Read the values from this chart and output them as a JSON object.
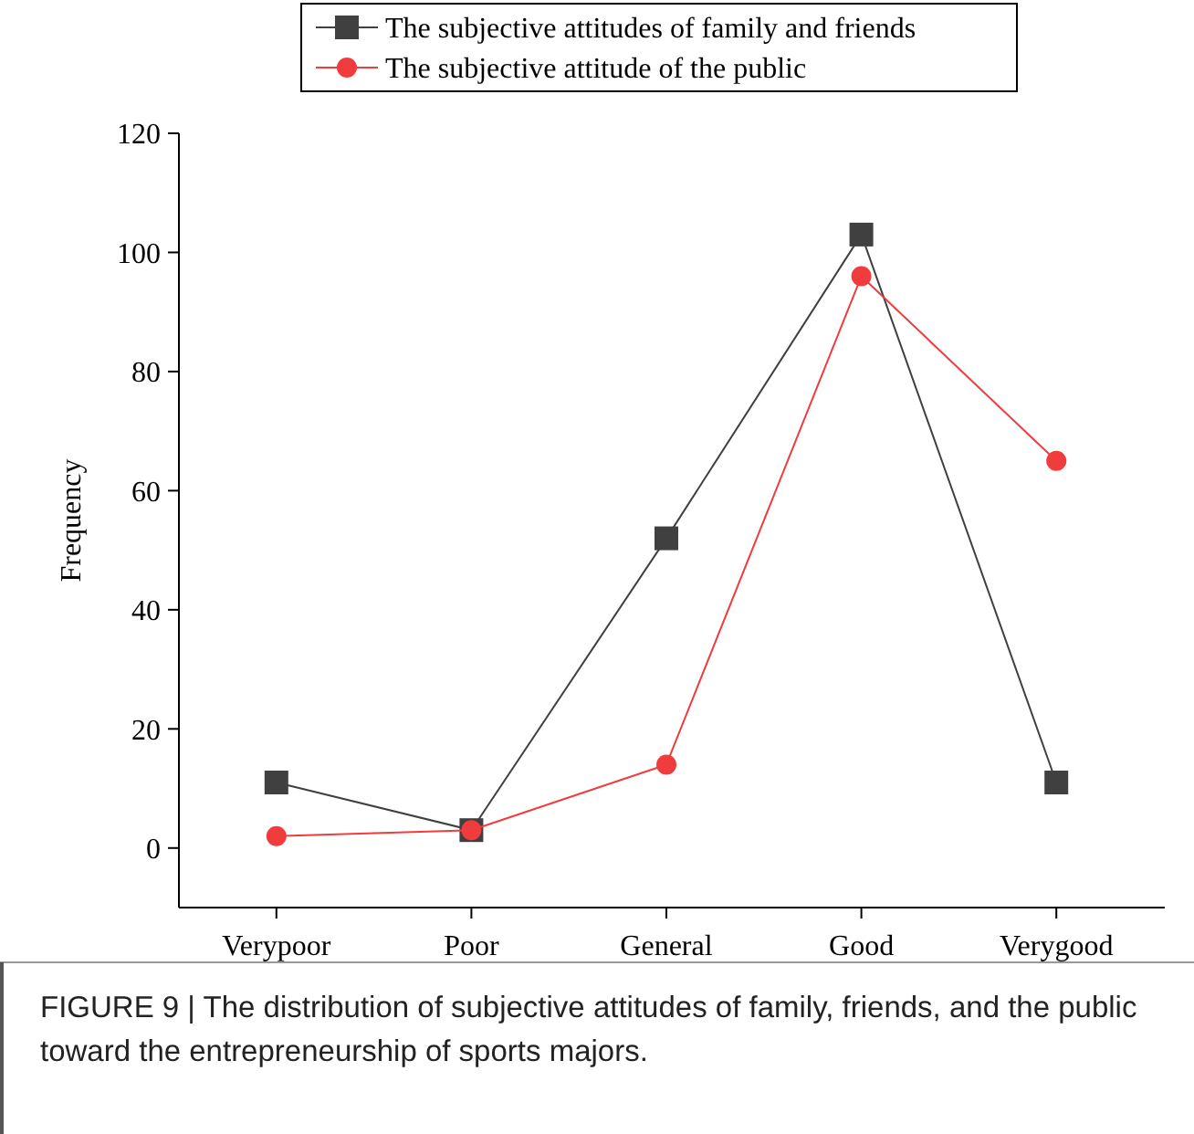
{
  "chart_data": {
    "type": "line",
    "ylabel": "Frequency",
    "categories": [
      "Verypoor",
      "Poor",
      "General",
      "Good",
      "Verygood"
    ],
    "series": [
      {
        "name": "The subjective attitudes of family and friends",
        "color": "#404040",
        "marker": "square",
        "values": [
          11,
          3,
          52,
          103,
          11
        ]
      },
      {
        "name": "The subjective attitude of the public",
        "color": "#f03c3c",
        "marker": "circle",
        "values": [
          2,
          3,
          14,
          96,
          65
        ]
      }
    ],
    "ylim": [
      -10,
      120
    ],
    "yticks": [
      0,
      20,
      40,
      60,
      80,
      100,
      120
    ],
    "grid": false,
    "legend": "top",
    "line_style": "solid",
    "annotations": [
      "FIGURE 9 | The distribution of subjective attitudes of family, friends, and the public toward the entrepreneurship of sports majors."
    ]
  }
}
